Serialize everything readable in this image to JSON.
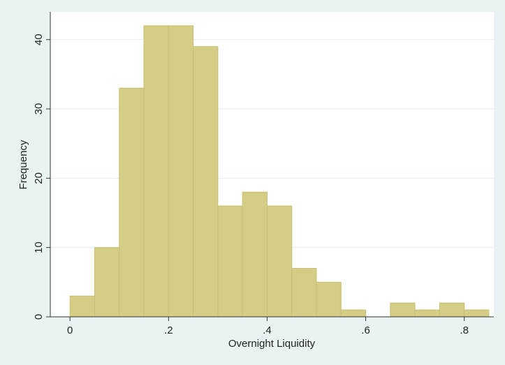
{
  "chart_data": {
    "type": "bar",
    "subtype": "histogram",
    "xlabel": "Overnight Liquidity",
    "ylabel": "Frequency",
    "bin_width": 0.05,
    "bin_starts": [
      0.0,
      0.05,
      0.1,
      0.15,
      0.2,
      0.25,
      0.3,
      0.35,
      0.4,
      0.45,
      0.5,
      0.55,
      0.6,
      0.65,
      0.7,
      0.75,
      0.8
    ],
    "values": [
      3,
      10,
      33,
      42,
      42,
      39,
      16,
      18,
      16,
      7,
      5,
      1,
      0,
      2,
      1,
      2,
      1
    ],
    "xlim": [
      -0.04,
      0.86
    ],
    "ylim": [
      0,
      44
    ],
    "x_ticks": [
      0,
      0.2,
      0.4,
      0.6,
      0.8
    ],
    "x_tick_labels": [
      "0",
      ".2",
      ".4",
      ".6",
      ".8"
    ],
    "y_ticks": [
      0,
      10,
      20,
      30,
      40
    ],
    "y_tick_labels": [
      "0",
      "10",
      "20",
      "30",
      "40"
    ],
    "grid": "horizontal",
    "colors": {
      "bar_fill": "#d4cd86",
      "bar_stroke": "#c9bf72",
      "plot_background": "#ffffff",
      "figure_background": "#e9f3f4",
      "grid": "#e6eef0"
    }
  }
}
